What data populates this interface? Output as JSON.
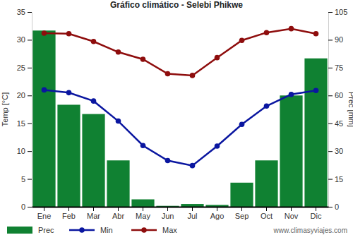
{
  "chart_data": {
    "type": "bar",
    "title": "Gráfico climático - Selebi Phikwe",
    "ylabel": "Temp [°C]",
    "y2label": "Prec [mm]",
    "categories": [
      "Ene",
      "Feb",
      "Mar",
      "Abr",
      "May",
      "Jun",
      "Jul",
      "Ago",
      "Sep",
      "Oct",
      "Nov",
      "Dic"
    ],
    "ylim": [
      0,
      35
    ],
    "yticks": [
      0,
      5,
      10,
      15,
      20,
      25,
      30,
      35
    ],
    "y2lim": [
      0,
      105
    ],
    "y2ticks": [
      0,
      15,
      30,
      45,
      60,
      75,
      90,
      105
    ],
    "grid": false,
    "legend": "bottom",
    "series": [
      {
        "name": "Prec",
        "type": "bar",
        "axis": "y2",
        "color": "#108132",
        "values": [
          95,
          55,
          50,
          25,
          4,
          0.5,
          1.5,
          1,
          13,
          25,
          60,
          80
        ]
      },
      {
        "name": "Min",
        "type": "line",
        "color": "#0a16a0",
        "marker": "circle",
        "values": [
          21,
          20.5,
          19,
          15.4,
          11,
          8.3,
          7.4,
          10.9,
          14.8,
          18.1,
          20.2,
          20.9
        ]
      },
      {
        "name": "Max",
        "type": "line",
        "color": "#8e0d0d",
        "marker": "circle",
        "values": [
          31.2,
          31.1,
          29.7,
          27.8,
          26.5,
          23.9,
          23.6,
          26.8,
          29.9,
          31.3,
          32,
          31.1
        ]
      }
    ],
    "annotations": [
      "www.climasyviajes.com"
    ]
  }
}
